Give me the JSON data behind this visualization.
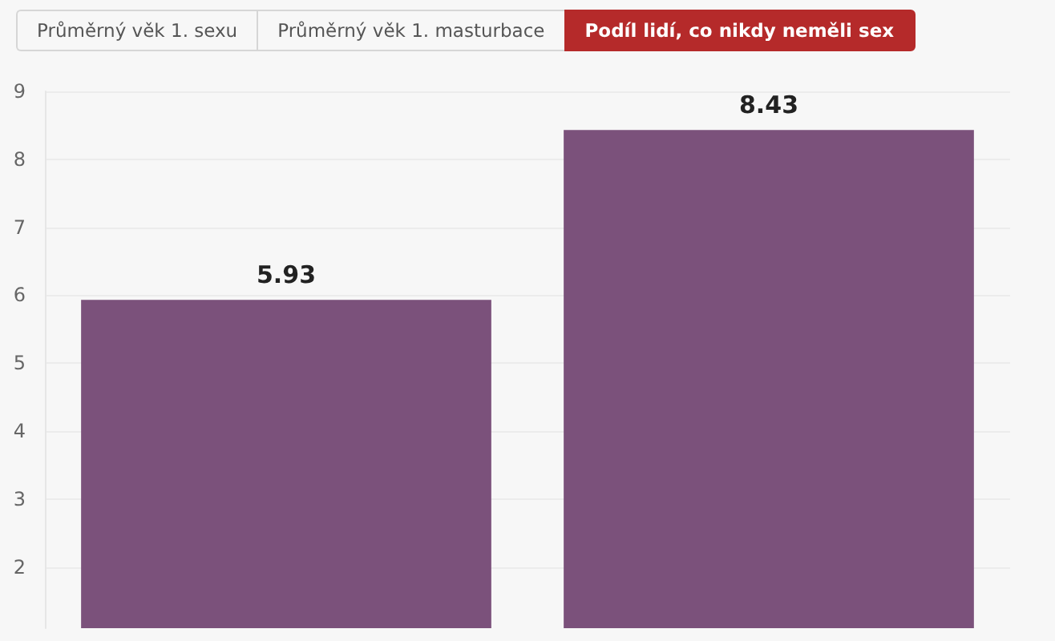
{
  "chart_data": {
    "type": "bar",
    "title": "Podíl lidí, co nikdy neměli sex",
    "annotations": [
      "Průměrný věk 1. sexu",
      "Průměrný věk 1. masturbace"
    ],
    "categories": [
      null,
      null
    ],
    "values": [
      5.93,
      8.43
    ],
    "color": "#7b517b",
    "data_labels": true,
    "ylim": [
      1.1,
      9
    ],
    "yticks": [
      2,
      3,
      4,
      5,
      6,
      7,
      8,
      9
    ],
    "grid": "y"
  }
}
